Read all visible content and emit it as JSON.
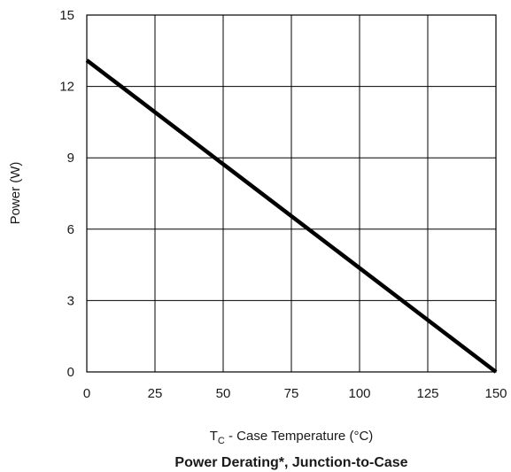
{
  "chart_data": {
    "type": "line",
    "title": "Power Derating*, Junction-to-Case",
    "xlabel": {
      "prefix": "T",
      "subscript": "C",
      "suffix": " - Case Temperature (°C)"
    },
    "ylabel": "Power (W)",
    "xlim": [
      0,
      150
    ],
    "ylim": [
      0,
      15
    ],
    "x_ticks": [
      "0",
      "25",
      "50",
      "75",
      "100",
      "125",
      "150"
    ],
    "y_ticks": [
      "0",
      "3",
      "6",
      "9",
      "12",
      "15"
    ],
    "grid": true,
    "line_color": "#000000",
    "series": [
      {
        "x": [
          0,
          150
        ],
        "y": [
          13.1,
          0
        ]
      }
    ]
  }
}
